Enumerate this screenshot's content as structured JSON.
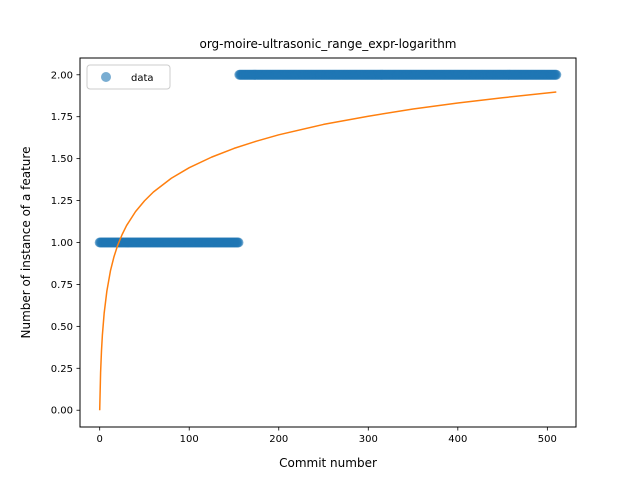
{
  "chart_data": {
    "type": "scatter",
    "title": "org-moire-ultrasonic_range_expr-logarithm",
    "xlabel": "Commit number",
    "ylabel": "Number of instance of a feature",
    "xlim": [
      -22,
      532
    ],
    "ylim": [
      -0.1,
      2.1
    ],
    "xticks": [
      0,
      100,
      200,
      300,
      400,
      500
    ],
    "yticks": [
      0.0,
      0.25,
      0.5,
      0.75,
      1.0,
      1.25,
      1.5,
      1.75,
      2.0
    ],
    "xtick_labels": [
      "0",
      "100",
      "200",
      "300",
      "400",
      "500"
    ],
    "ytick_labels": [
      "0.00",
      "0.25",
      "0.50",
      "0.75",
      "1.00",
      "1.25",
      "1.50",
      "1.75",
      "2.00"
    ],
    "grid": false,
    "legend": {
      "placement": "top-left",
      "entries": [
        "data"
      ]
    },
    "series": [
      {
        "name": "data",
        "kind": "scatter",
        "color": "#1f77b4",
        "segments": [
          {
            "x_start": 0,
            "x_end": 155,
            "y": 1.0
          },
          {
            "x_start": 156,
            "x_end": 510,
            "y": 2.0
          }
        ]
      },
      {
        "kind": "line",
        "color": "#ff7f0e",
        "x": [
          0,
          1,
          2,
          3,
          5,
          8,
          12,
          16,
          20,
          25,
          30,
          40,
          50,
          60,
          80,
          100,
          125,
          150,
          175,
          200,
          250,
          300,
          350,
          400,
          450,
          510
        ],
        "y": [
          0.0,
          0.224,
          0.355,
          0.448,
          0.579,
          0.71,
          0.831,
          0.916,
          0.982,
          1.047,
          1.101,
          1.184,
          1.248,
          1.301,
          1.383,
          1.446,
          1.509,
          1.561,
          1.604,
          1.642,
          1.704,
          1.753,
          1.796,
          1.832,
          1.863,
          1.897
        ]
      }
    ]
  }
}
